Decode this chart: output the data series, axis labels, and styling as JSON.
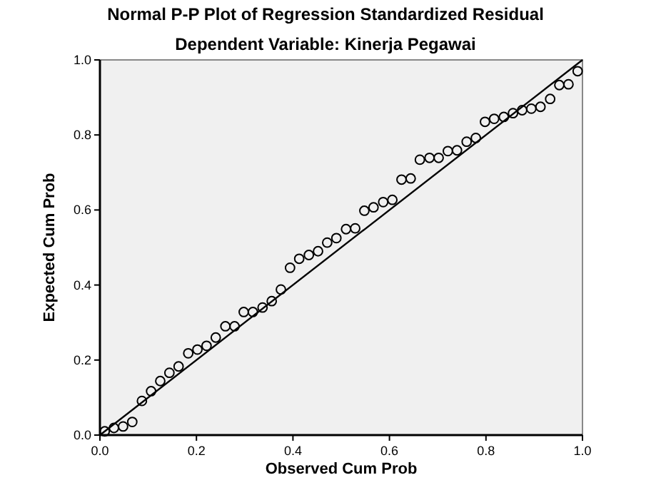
{
  "chart_data": {
    "type": "scatter",
    "title": "Normal P-P Plot of Regression Standardized Residual",
    "subtitle": "Dependent Variable: Kinerja Pegawai",
    "xlabel": "Observed Cum Prob",
    "ylabel": "Expected Cum Prob",
    "xlim": [
      0,
      1
    ],
    "ylim": [
      0,
      1
    ],
    "xticks": [
      {
        "value": 0,
        "label": "0.0"
      },
      {
        "value": 0.2,
        "label": "0.2"
      },
      {
        "value": 0.4,
        "label": "0.4"
      },
      {
        "value": 0.6,
        "label": "0.6"
      },
      {
        "value": 0.8,
        "label": "0.8"
      },
      {
        "value": 1,
        "label": "1.0"
      }
    ],
    "yticks": [
      {
        "value": 0,
        "label": "0.0"
      },
      {
        "value": 0.2,
        "label": "0.2"
      },
      {
        "value": 0.4,
        "label": "0.4"
      },
      {
        "value": 0.6,
        "label": "0.6"
      },
      {
        "value": 0.8,
        "label": "0.8"
      },
      {
        "value": 1,
        "label": "1.0"
      }
    ],
    "grid": false,
    "series": [
      {
        "color": "#000000",
        "marker": "circle",
        "x": [
          0.01,
          0.029,
          0.048,
          0.067,
          0.087,
          0.106,
          0.125,
          0.144,
          0.163,
          0.183,
          0.202,
          0.221,
          0.24,
          0.26,
          0.279,
          0.298,
          0.317,
          0.337,
          0.356,
          0.375,
          0.394,
          0.413,
          0.433,
          0.452,
          0.471,
          0.49,
          0.51,
          0.529,
          0.548,
          0.567,
          0.587,
          0.606,
          0.625,
          0.644,
          0.663,
          0.683,
          0.702,
          0.721,
          0.74,
          0.76,
          0.779,
          0.798,
          0.817,
          0.837,
          0.856,
          0.875,
          0.894,
          0.913,
          0.933,
          0.952,
          0.971,
          0.99
        ],
        "values": [
          0.01,
          0.019,
          0.023,
          0.035,
          0.091,
          0.117,
          0.144,
          0.166,
          0.183,
          0.218,
          0.228,
          0.238,
          0.26,
          0.29,
          0.29,
          0.328,
          0.328,
          0.34,
          0.357,
          0.388,
          0.446,
          0.47,
          0.48,
          0.49,
          0.513,
          0.525,
          0.549,
          0.551,
          0.598,
          0.607,
          0.621,
          0.627,
          0.681,
          0.684,
          0.734,
          0.739,
          0.739,
          0.757,
          0.759,
          0.782,
          0.792,
          0.835,
          0.843,
          0.848,
          0.858,
          0.866,
          0.87,
          0.875,
          0.896,
          0.933,
          0.935,
          0.97
        ]
      },
      {
        "type": "line",
        "color": "#000000",
        "marker": "none",
        "x": [
          0,
          1
        ],
        "values": [
          0,
          1
        ]
      }
    ]
  }
}
